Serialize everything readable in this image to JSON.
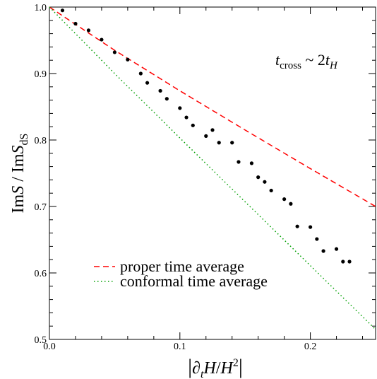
{
  "chart_data": {
    "type": "scatter",
    "xlim": [
      0.0,
      0.25
    ],
    "ylim": [
      0.5,
      1.0
    ],
    "x_ticks": [
      0.0,
      0.1,
      0.2
    ],
    "x_tick_labels": [
      "0.0",
      "0.1",
      "0.2"
    ],
    "y_ticks": [
      0.5,
      0.6,
      0.7,
      0.8,
      0.9,
      1.0
    ],
    "y_tick_labels": [
      "0.5",
      "0.6",
      "0.7",
      "0.8",
      "0.9",
      "1.0"
    ],
    "x_minor_step": 0.02,
    "y_minor_step": 0.02,
    "grid": false,
    "legend_position": "lower-left",
    "annotation": "tcross ~ 2tH",
    "series": [
      {
        "name": "proper time average",
        "kind": "line",
        "style": "dashed",
        "color": "#ff0000",
        "x": [
          0.0,
          0.05,
          0.1,
          0.15,
          0.2,
          0.25
        ],
        "y": [
          1.0,
          0.935,
          0.874,
          0.815,
          0.757,
          0.7
        ]
      },
      {
        "name": "conformal time average",
        "kind": "line",
        "style": "dotted",
        "color": "#00a000",
        "x": [
          0.0,
          0.05,
          0.1,
          0.15,
          0.2,
          0.25
        ],
        "y": [
          1.0,
          0.9,
          0.803,
          0.707,
          0.611,
          0.515
        ]
      },
      {
        "kind": "points",
        "color": "#000000",
        "x": [
          0.01,
          0.02,
          0.03,
          0.04,
          0.05,
          0.06,
          0.07,
          0.075,
          0.085,
          0.09,
          0.1,
          0.105,
          0.11,
          0.12,
          0.125,
          0.13,
          0.14,
          0.145,
          0.155,
          0.16,
          0.165,
          0.17,
          0.18,
          0.185,
          0.19,
          0.2,
          0.205,
          0.21,
          0.22,
          0.225,
          0.23
        ],
        "y": [
          0.995,
          0.975,
          0.965,
          0.951,
          0.932,
          0.921,
          0.9,
          0.886,
          0.874,
          0.862,
          0.848,
          0.834,
          0.822,
          0.806,
          0.815,
          0.796,
          0.796,
          0.767,
          0.765,
          0.744,
          0.737,
          0.724,
          0.711,
          0.704,
          0.67,
          0.669,
          0.651,
          0.633,
          0.636,
          0.617,
          0.617
        ]
      }
    ]
  }
}
